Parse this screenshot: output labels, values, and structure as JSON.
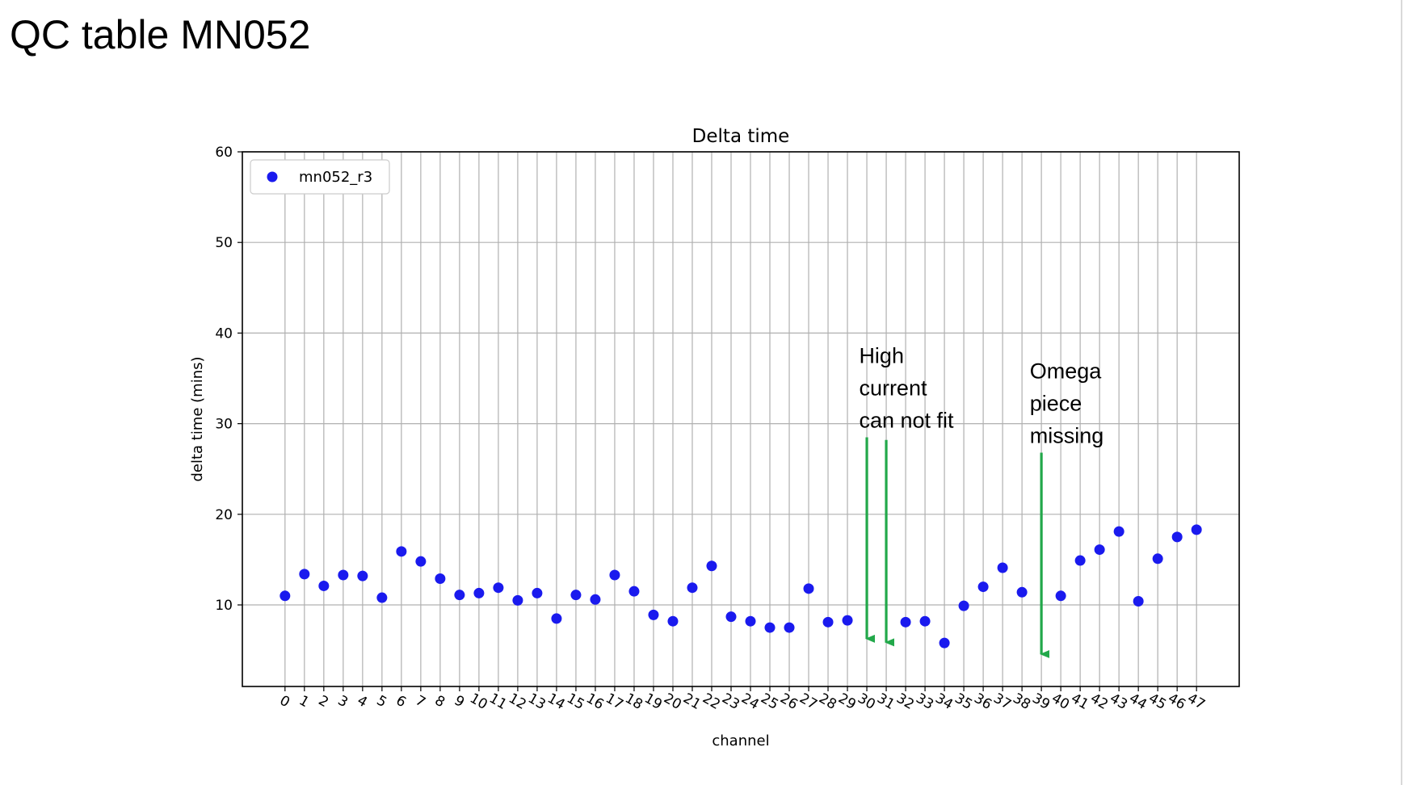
{
  "slide": {
    "title": "QC table MN052"
  },
  "chart_data": {
    "type": "scatter",
    "title": "Delta time",
    "xlabel": "channel",
    "ylabel": "delta time (mins)",
    "ylim": [
      1,
      60
    ],
    "yticks": [
      10,
      20,
      30,
      40,
      50,
      60
    ],
    "xlim": [
      -2.2,
      49.2
    ],
    "grid": true,
    "legend": {
      "placement": "top-left"
    },
    "series": [
      {
        "name": "mn052_r3",
        "color": "#1a1aee",
        "x": [
          0,
          1,
          2,
          3,
          4,
          5,
          6,
          7,
          8,
          9,
          10,
          11,
          12,
          13,
          14,
          15,
          16,
          17,
          18,
          19,
          20,
          21,
          22,
          23,
          24,
          25,
          26,
          27,
          28,
          29,
          32,
          33,
          34,
          35,
          36,
          37,
          38,
          40,
          41,
          42,
          43,
          44,
          45,
          46,
          47
        ],
        "y": [
          11.0,
          13.4,
          12.1,
          13.3,
          13.2,
          10.8,
          15.9,
          14.8,
          12.9,
          11.1,
          11.3,
          11.9,
          10.5,
          11.3,
          8.5,
          11.1,
          10.6,
          13.3,
          11.5,
          8.9,
          8.2,
          11.9,
          14.3,
          8.7,
          8.2,
          7.5,
          7.5,
          11.8,
          8.1,
          8.3,
          8.1,
          8.2,
          5.8,
          9.9,
          12.0,
          14.1,
          11.4,
          11.0,
          14.9,
          16.1,
          18.1,
          10.4,
          15.1,
          17.5,
          18.3
        ]
      }
    ],
    "xticks": [
      "0",
      "1",
      "2",
      "3",
      "4",
      "5",
      "6",
      "7",
      "8",
      "9",
      "10",
      "11",
      "12",
      "13",
      "14",
      "15",
      "16",
      "17",
      "18",
      "19",
      "20",
      "21",
      "22",
      "23",
      "24",
      "25",
      "26",
      "27",
      "28",
      "29",
      "30",
      "31",
      "32",
      "33",
      "34",
      "35",
      "36",
      "37",
      "38",
      "39",
      "40",
      "41",
      "42",
      "43",
      "44",
      "45",
      "46",
      "47"
    ],
    "annotations": [
      {
        "name": "high-current",
        "lines": [
          "High",
          "current",
          "can not fit"
        ],
        "text_x": 29.6,
        "text_y": 36.7,
        "arrows": [
          {
            "x": 30,
            "y_start": 28.5,
            "y_end": 5.2
          },
          {
            "x": 31,
            "y_start": 28.2,
            "y_end": 4.8
          }
        ],
        "arrow_color": "#22a84a"
      },
      {
        "name": "omega-missing",
        "lines": [
          "Omega",
          "piece",
          "missing"
        ],
        "text_x": 38.4,
        "text_y": 35.0,
        "arrows": [
          {
            "x": 39,
            "y_start": 26.8,
            "y_end": 3.5
          }
        ],
        "arrow_color": "#22a84a"
      }
    ]
  }
}
